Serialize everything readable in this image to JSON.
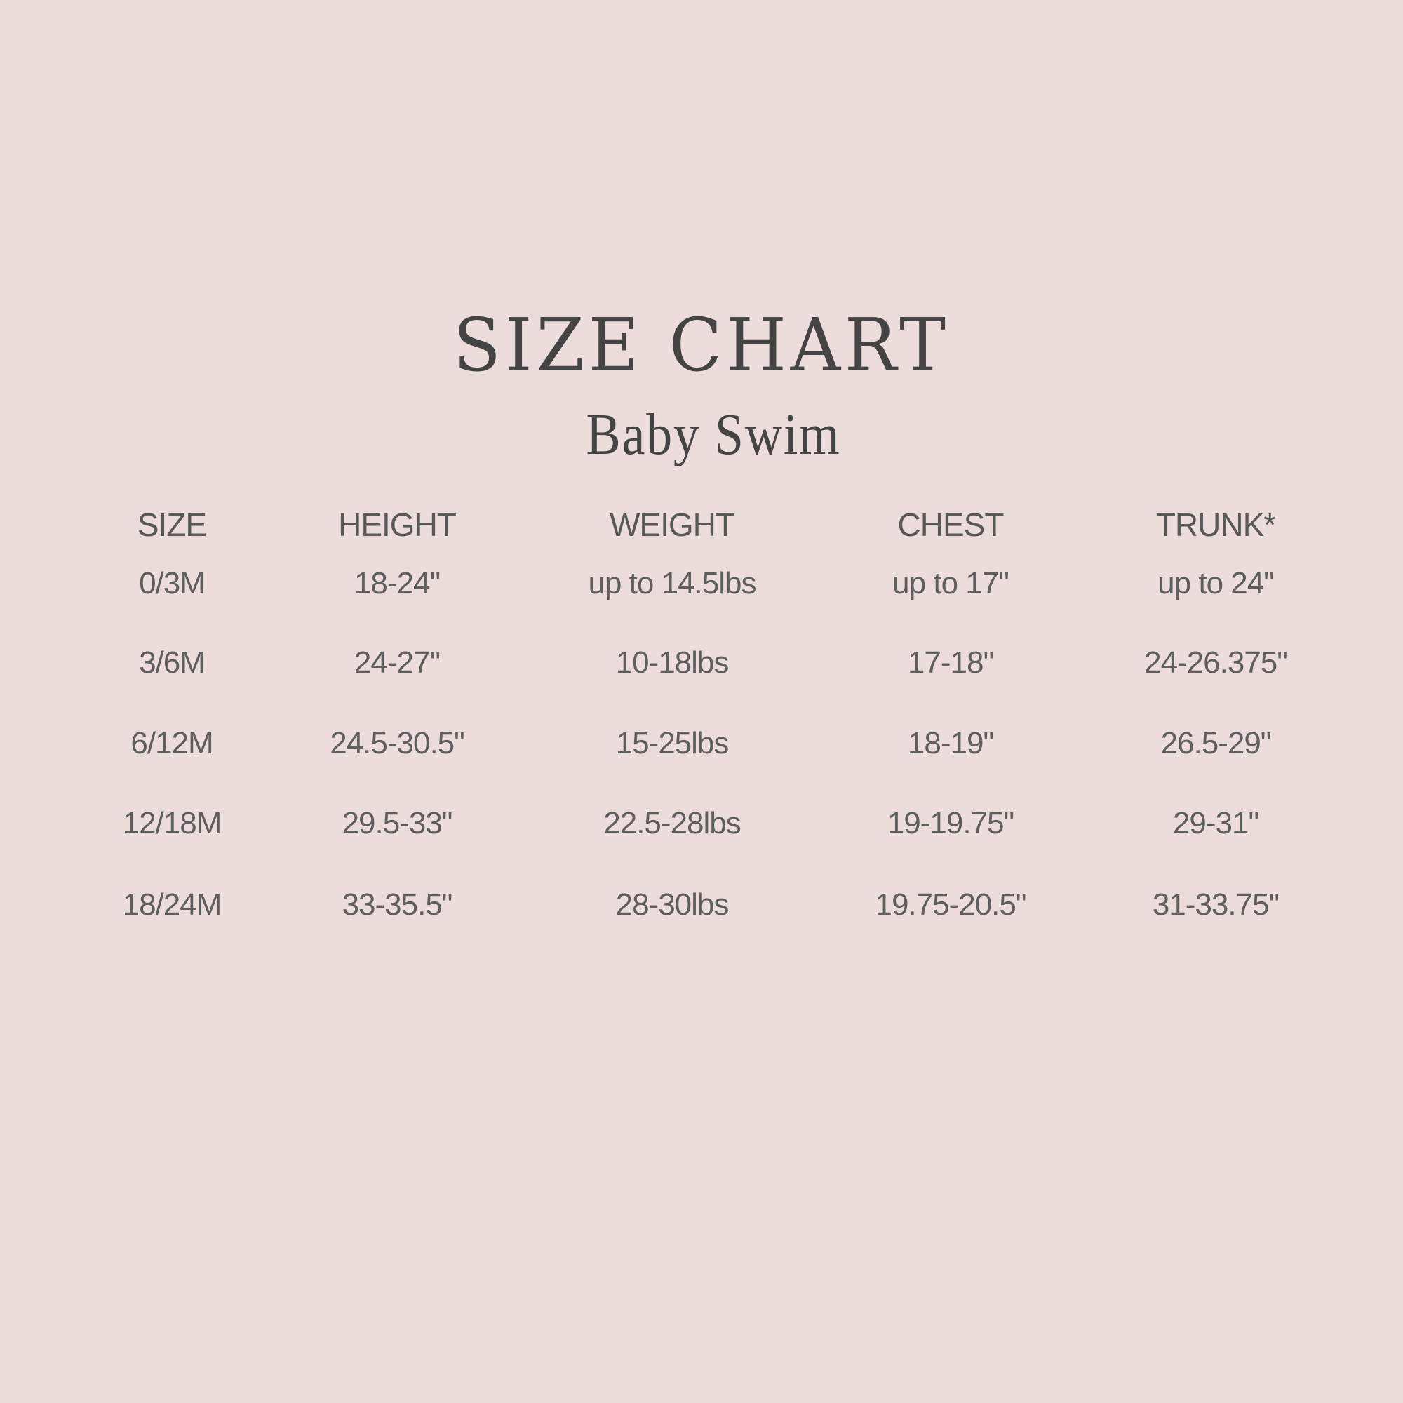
{
  "title": "SIZE CHART",
  "subtitle": "Baby Swim",
  "colors": {
    "background": "#ecdcdc",
    "text": "#4a4a4a"
  },
  "table": {
    "headers": [
      "SIZE",
      "HEIGHT",
      "WEIGHT",
      "CHEST",
      "TRUNK*"
    ],
    "rows": [
      [
        "0/3M",
        "18-24\"",
        "up to 14.5lbs",
        "up to 17\"",
        "up to 24\""
      ],
      [
        "3/6M",
        "24-27\"",
        "10-18lbs",
        "17-18\"",
        "24-26.375\""
      ],
      [
        "6/12M",
        "24.5-30.5\"",
        "15-25lbs",
        "18-19\"",
        "26.5-29\""
      ],
      [
        "12/18M",
        "29.5-33\"",
        "22.5-28lbs",
        "19-19.75\"",
        "29-31\""
      ],
      [
        "18/24M",
        "33-35.5\"",
        "28-30lbs",
        "19.75-20.5\"",
        "31-33.75\""
      ]
    ]
  }
}
